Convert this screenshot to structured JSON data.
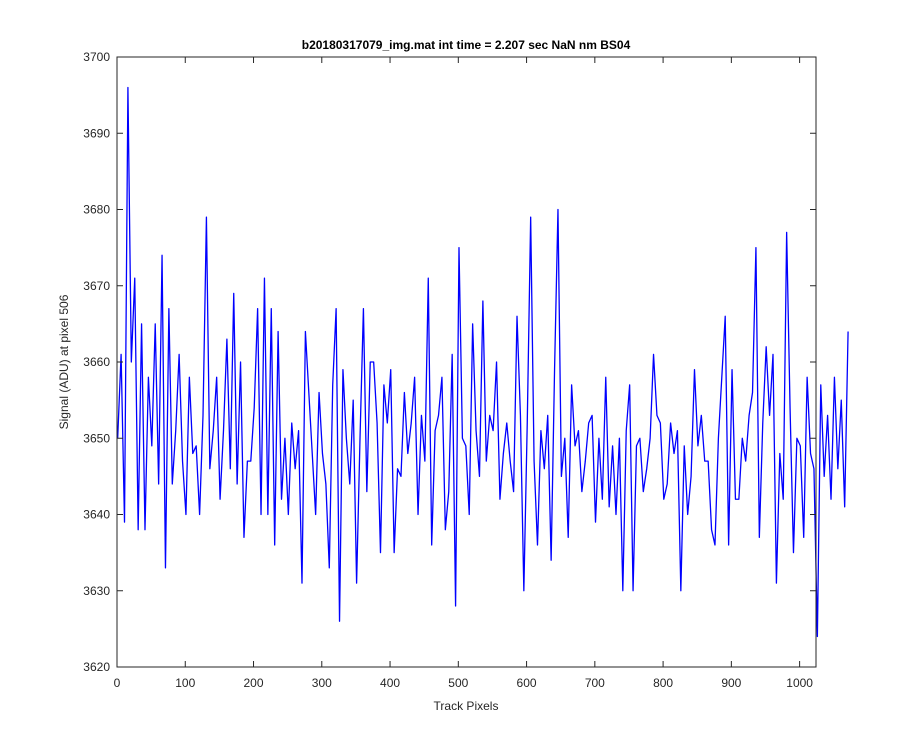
{
  "chart_data": {
    "type": "line",
    "title": "b20180317079_img.mat int time = 2.207 sec  NaN nm BS04",
    "xlabel": "Track Pixels",
    "ylabel": "Signal (ADU) at pixel 506",
    "xlim": [
      0,
      1024
    ],
    "ylim": [
      3620,
      3700
    ],
    "xticks": [
      0,
      100,
      200,
      300,
      400,
      500,
      600,
      700,
      800,
      900,
      1000
    ],
    "yticks": [
      3620,
      3630,
      3640,
      3650,
      3660,
      3670,
      3680,
      3690,
      3700
    ],
    "grid": false,
    "series": [
      {
        "color": "#0000ff",
        "x_start": 1,
        "x_step": 5,
        "values": [
          3650,
          3661,
          3639,
          3696,
          3660,
          3671,
          3638,
          3665,
          3638,
          3658,
          3649,
          3665,
          3644,
          3674,
          3633,
          3667,
          3644,
          3651,
          3661,
          3647,
          3640,
          3658,
          3648,
          3649,
          3640,
          3653,
          3679,
          3646,
          3651,
          3658,
          3642,
          3651,
          3663,
          3646,
          3669,
          3644,
          3660,
          3637,
          3647,
          3647,
          3654,
          3667,
          3640,
          3671,
          3640,
          3667,
          3636,
          3664,
          3642,
          3650,
          3640,
          3652,
          3646,
          3651,
          3631,
          3664,
          3656,
          3648,
          3640,
          3656,
          3648,
          3644,
          3633,
          3657,
          3667,
          3626,
          3659,
          3650,
          3644,
          3655,
          3631,
          3650,
          3667,
          3643,
          3660,
          3660,
          3652,
          3635,
          3657,
          3652,
          3659,
          3635,
          3646,
          3645,
          3656,
          3648,
          3652,
          3658,
          3640,
          3653,
          3647,
          3671,
          3636,
          3651,
          3653,
          3658,
          3638,
          3643,
          3661,
          3628,
          3675,
          3650,
          3649,
          3640,
          3665,
          3651,
          3645,
          3668,
          3647,
          3653,
          3651,
          3660,
          3642,
          3648,
          3652,
          3647,
          3643,
          3666,
          3653,
          3630,
          3652,
          3679,
          3647,
          3636,
          3651,
          3646,
          3653,
          3634,
          3659,
          3680,
          3645,
          3650,
          3637,
          3657,
          3649,
          3651,
          3643,
          3647,
          3652,
          3653,
          3639,
          3650,
          3642,
          3658,
          3641,
          3649,
          3640,
          3650,
          3630,
          3651,
          3657,
          3630,
          3649,
          3650,
          3643,
          3646,
          3650,
          3661,
          3653,
          3652,
          3642,
          3644,
          3652,
          3648,
          3651,
          3630,
          3649,
          3640,
          3645,
          3659,
          3649,
          3653,
          3647,
          3647,
          3638,
          3636,
          3650,
          3658,
          3666,
          3636,
          3659,
          3642,
          3642,
          3650,
          3647,
          3653,
          3656,
          3675,
          3637,
          3652,
          3662,
          3653,
          3661,
          3631,
          3648,
          3642,
          3677,
          3654,
          3635,
          3650,
          3649,
          3637,
          3658,
          3648,
          3646,
          3624,
          3657,
          3645,
          3653,
          3642,
          3658,
          3646,
          3655,
          3641,
          3664
        ]
      }
    ]
  }
}
